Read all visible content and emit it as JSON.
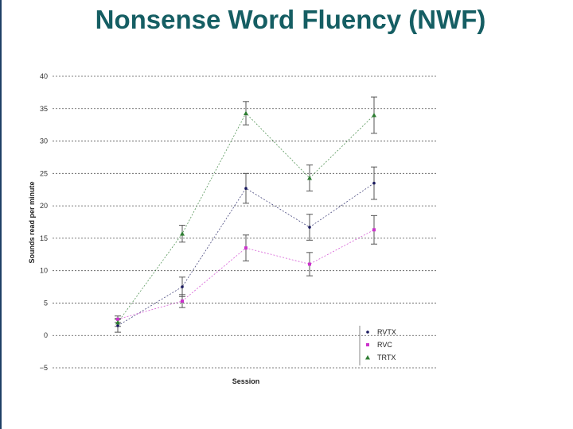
{
  "title": "Nonsense Word Fluency (NWF)",
  "chart_data": {
    "type": "line",
    "title": "Nonsense Word Fluency (NWF)",
    "xlabel": "Session",
    "ylabel": "Sounds read per minute",
    "x": [
      1,
      2,
      3,
      4,
      5
    ],
    "ylim": [
      -5,
      40
    ],
    "yticks": [
      -5,
      0,
      5,
      10,
      15,
      20,
      25,
      30,
      35,
      40
    ],
    "grid": true,
    "legend": "bottom-right",
    "series": [
      {
        "name": "RVTX",
        "color": "#1a1a5e",
        "marker": "circle",
        "values": [
          1.5,
          7.5,
          22.7,
          16.7,
          23.5
        ],
        "err": [
          1.0,
          1.5,
          2.3,
          2.0,
          2.5
        ]
      },
      {
        "name": "RVC",
        "color": "#cc33cc",
        "marker": "square",
        "values": [
          2.5,
          5.3,
          13.5,
          11.0,
          16.3
        ],
        "err": [
          0.5,
          1.0,
          2.0,
          1.8,
          2.2
        ]
      },
      {
        "name": "TRTX",
        "color": "#2e7d32",
        "marker": "triangle",
        "values": [
          2.0,
          15.7,
          34.3,
          24.3,
          34.0
        ],
        "err": [
          0.6,
          1.3,
          1.8,
          2.0,
          2.8
        ]
      }
    ]
  }
}
